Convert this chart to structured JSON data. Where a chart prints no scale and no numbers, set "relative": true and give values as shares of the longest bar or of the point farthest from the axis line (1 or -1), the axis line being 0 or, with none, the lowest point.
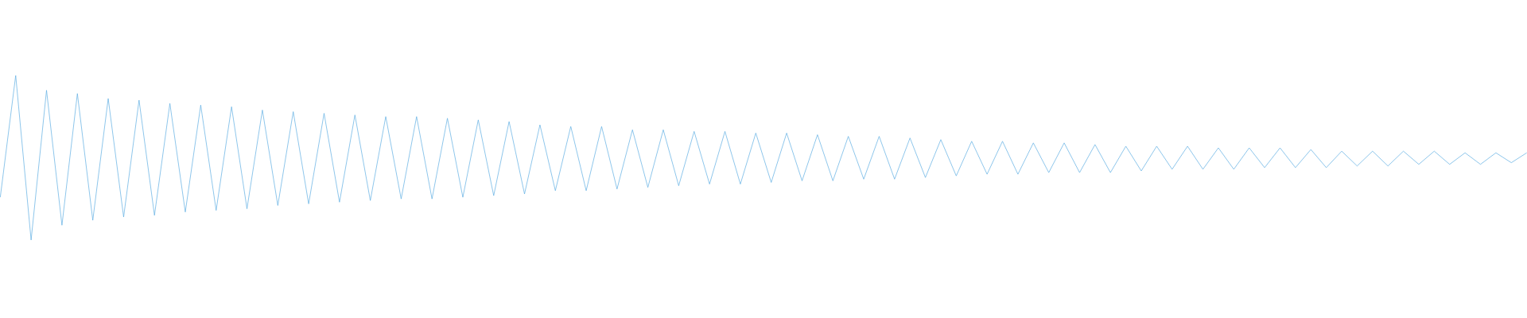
{
  "chart_data": {
    "type": "line",
    "relative": true,
    "categories": [
      null,
      null,
      null,
      null,
      null,
      null,
      null,
      null,
      null,
      null,
      null,
      null,
      null,
      null,
      null,
      null,
      null,
      null,
      null,
      null,
      null,
      null,
      null,
      null,
      null,
      null,
      null,
      null,
      null,
      null,
      null,
      null,
      null,
      null,
      null,
      null,
      null,
      null,
      null,
      null,
      null,
      null,
      null,
      null,
      null,
      null,
      null,
      null,
      null,
      null,
      null,
      null,
      null,
      null,
      null,
      null,
      null,
      null,
      null,
      null,
      null,
      null,
      null,
      null,
      null,
      null,
      null,
      null,
      null,
      null,
      null,
      null,
      null,
      null,
      null,
      null,
      null,
      null,
      null,
      null,
      null,
      null,
      null,
      null,
      null,
      null,
      null,
      null,
      null,
      null,
      null,
      null,
      null,
      null,
      null,
      null,
      null,
      null,
      null,
      null
    ],
    "series": [
      {
        "color": "#5dade2",
        "values": [
          0.26,
          1.0,
          0.0,
          0.91,
          0.09,
          0.89,
          0.12,
          0.86,
          0.14,
          0.85,
          0.15,
          0.83,
          0.17,
          0.82,
          0.18,
          0.81,
          0.19,
          0.79,
          0.21,
          0.78,
          0.22,
          0.77,
          0.23,
          0.76,
          0.24,
          0.75,
          0.25,
          0.75,
          0.25,
          0.74,
          0.26,
          0.73,
          0.27,
          0.72,
          0.28,
          0.7,
          0.3,
          0.69,
          0.3,
          0.69,
          0.31,
          0.67,
          0.32,
          0.67,
          0.33,
          0.66,
          0.34,
          0.66,
          0.34,
          0.65,
          0.35,
          0.65,
          0.36,
          0.64,
          0.36,
          0.63,
          0.37,
          0.63,
          0.37,
          0.62,
          0.38,
          0.61,
          0.39,
          0.6,
          0.4,
          0.6,
          0.4,
          0.59,
          0.41,
          0.59,
          0.41,
          0.58,
          0.41,
          0.57,
          0.42,
          0.57,
          0.43,
          0.57,
          0.43,
          0.56,
          0.43,
          0.56,
          0.44,
          0.56,
          0.44,
          0.55,
          0.44,
          0.54,
          0.45,
          0.54,
          0.45,
          0.54,
          0.46,
          0.54,
          0.46,
          0.53,
          0.46,
          0.53,
          0.47,
          0.53
        ]
      }
    ]
  }
}
